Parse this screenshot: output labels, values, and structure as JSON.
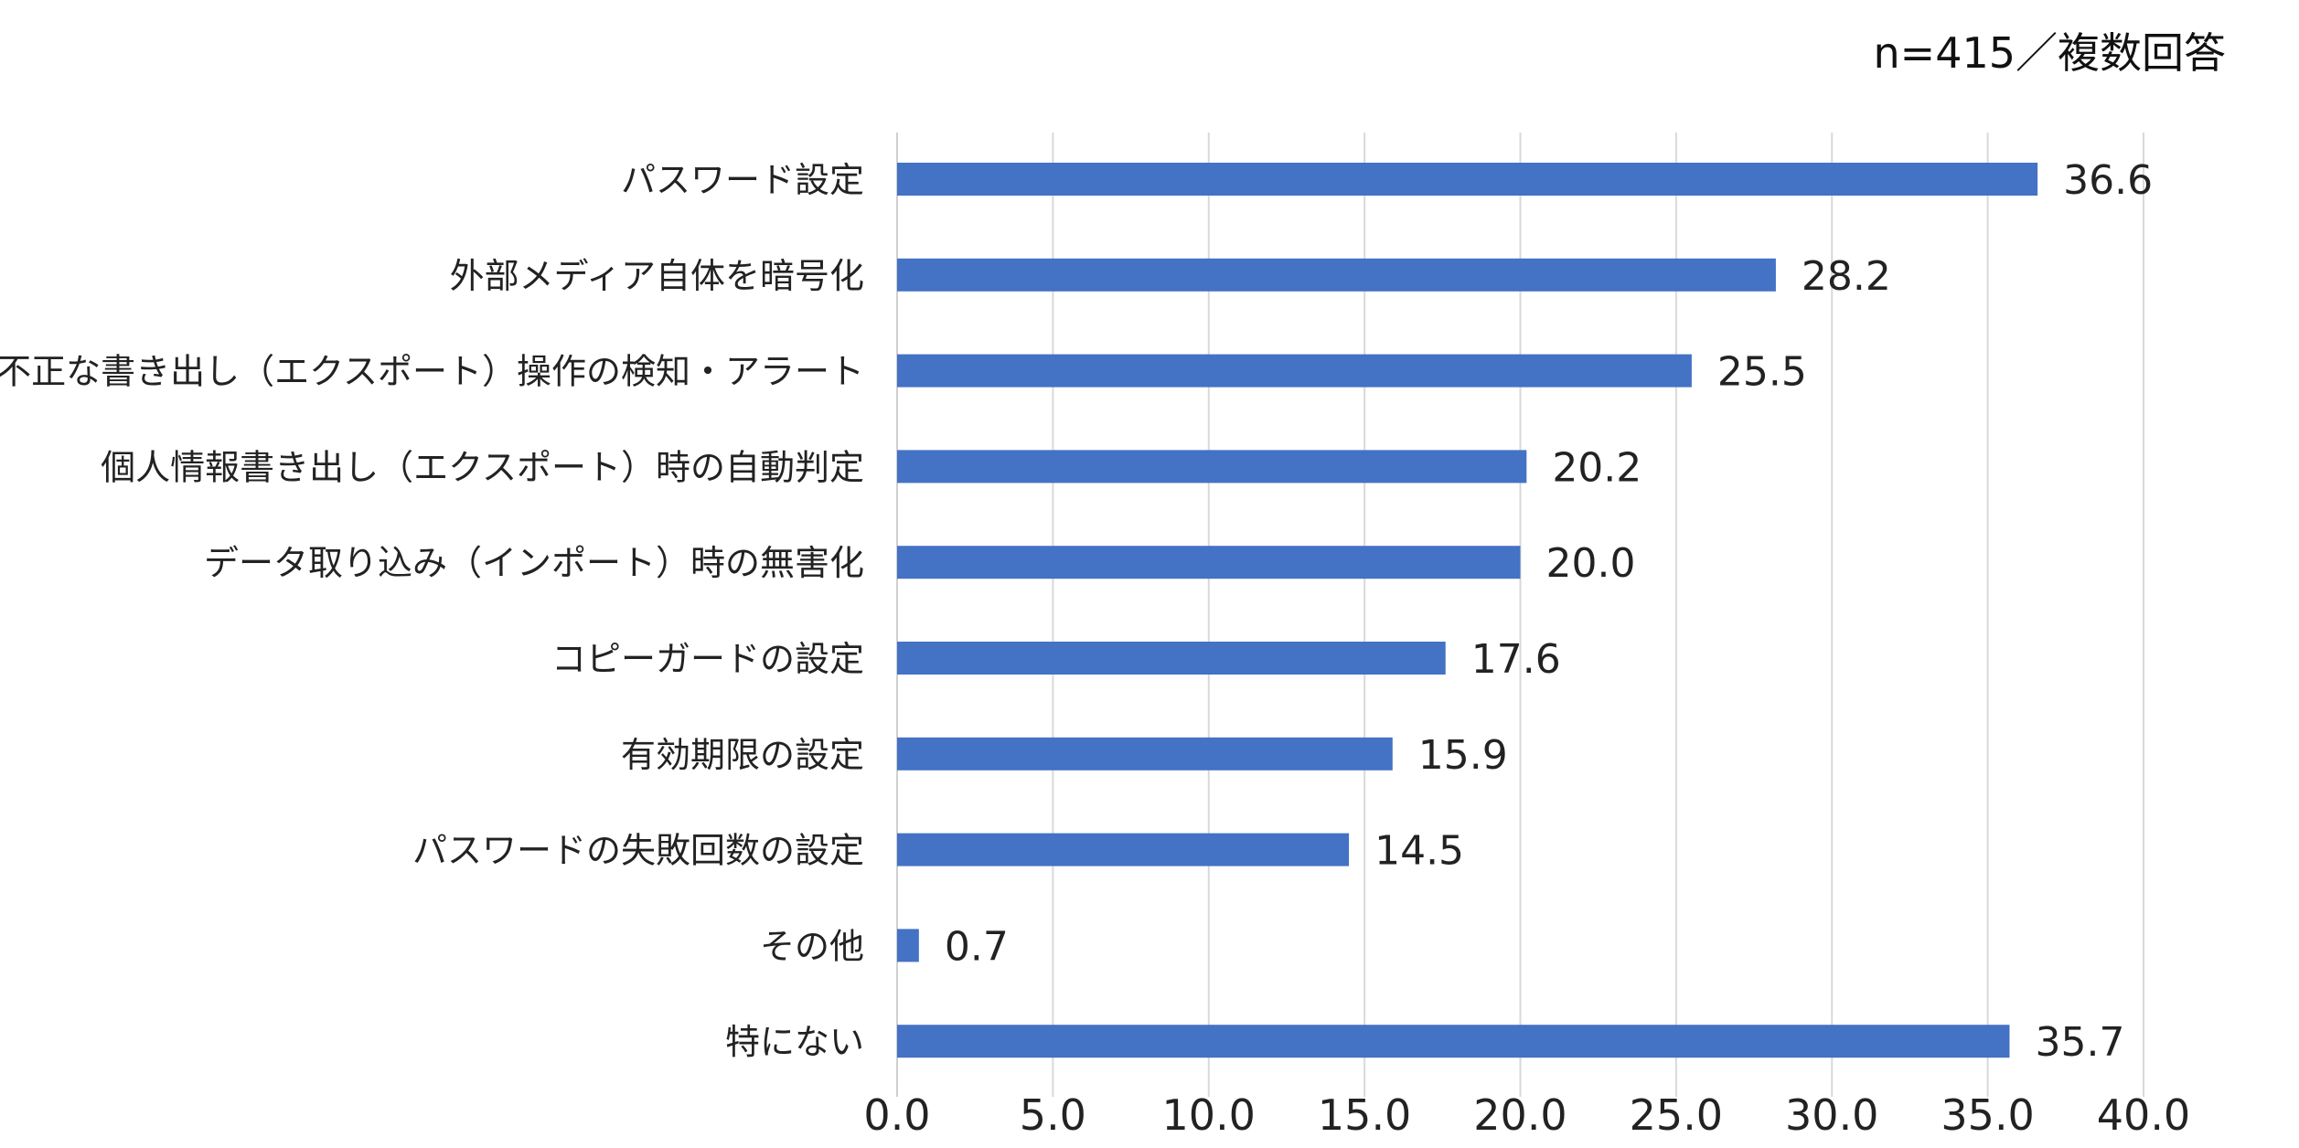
{
  "note": "n=415／複数回答",
  "chart_data": {
    "type": "bar",
    "orientation": "horizontal",
    "title": "",
    "xlabel": "",
    "ylabel": "",
    "xlim": [
      0,
      40
    ],
    "ticks": [
      "0.0",
      "5.0",
      "10.0",
      "15.0",
      "20.0",
      "25.0",
      "30.0",
      "35.0",
      "40.0"
    ],
    "grid": true,
    "legend": "none",
    "bar_color": "#4472C4",
    "gridline_color": "#D9D9D9",
    "categories": [
      "パスワード設定",
      "外部メディア自体を暗号化",
      "不正な書き出し（エクスポート）操作の検知・アラート",
      "個人情報書き出し（エクスポート）時の自動判定",
      "データ取り込み（インポート）時の無害化",
      "コピーガードの設定",
      "有効期限の設定",
      "パスワードの失敗回数の設定",
      "その他",
      "特にない"
    ],
    "values": [
      36.6,
      28.2,
      25.5,
      20.2,
      20.0,
      17.6,
      15.9,
      14.5,
      0.7,
      35.7
    ],
    "value_labels": [
      "36.6",
      "28.2",
      "25.5",
      "20.2",
      "20.0",
      "17.6",
      "15.9",
      "14.5",
      "0.7",
      "35.7"
    ]
  }
}
